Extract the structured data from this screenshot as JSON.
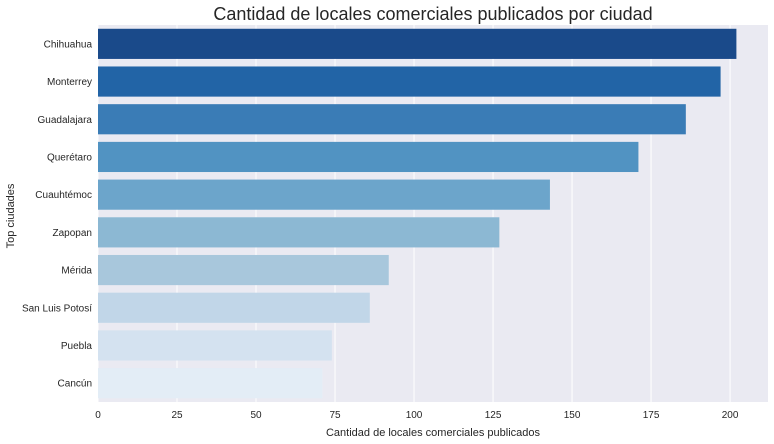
{
  "chart_data": {
    "type": "bar",
    "orientation": "horizontal",
    "title": "Cantidad de locales comerciales publicados por ciudad",
    "xlabel": "Cantidad de locales comerciales publicados",
    "ylabel": "Top ciudades",
    "categories": [
      "Chihuahua",
      "Monterrey",
      "Guadalajara",
      "Querétaro",
      "Cuauhtémoc",
      "Zapopan",
      "Mérida",
      "San Luis Potosí",
      "Puebla",
      "Cancún"
    ],
    "values": [
      202,
      197,
      186,
      171,
      143,
      127,
      92,
      86,
      74,
      71
    ],
    "colors": [
      "#1a4a8a",
      "#2264a6",
      "#3a7cb6",
      "#5193c2",
      "#6ca5cb",
      "#8cb8d3",
      "#a8c7dc",
      "#c1d6e8",
      "#d4e2f0",
      "#e3edf6"
    ],
    "xlim": [
      0,
      212
    ],
    "xticks": [
      0,
      25,
      50,
      75,
      100,
      125,
      150,
      175,
      200
    ],
    "grid": true,
    "background": "#eaeaf2",
    "gridcolor": "#ffffff"
  }
}
